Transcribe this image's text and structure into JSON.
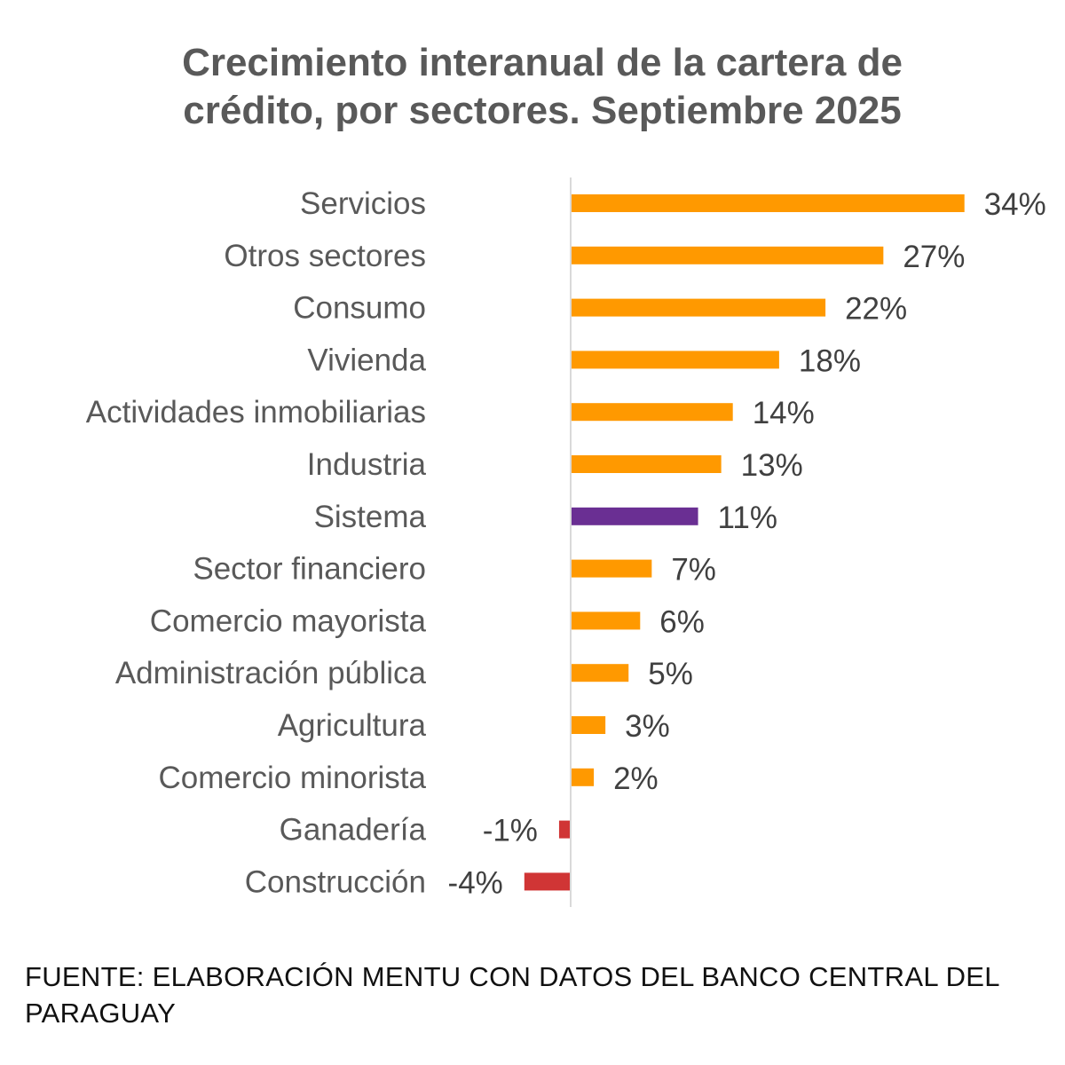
{
  "chart_data": {
    "type": "bar",
    "orientation": "horizontal",
    "title_line1": "Crecimiento interanual de la cartera de",
    "title_line2": "crédito, por sectores. Septiembre 2025",
    "categories": [
      "Servicios",
      "Otros sectores",
      "Consumo",
      "Vivienda",
      "Actividades inmobiliarias",
      "Industria",
      "Sistema",
      "Sector financiero",
      "Comercio mayorista",
      "Administración pública",
      "Agricultura",
      "Comercio minorista",
      "Ganadería",
      "Construcción"
    ],
    "values": [
      34,
      27,
      22,
      18,
      14,
      13,
      11,
      7,
      6,
      5,
      3,
      2,
      -1,
      -4
    ],
    "labels": [
      "34%",
      "27%",
      "22%",
      "18%",
      "14%",
      "13%",
      "11%",
      "7%",
      "6%",
      "5%",
      "3%",
      "2%",
      "-1%",
      "-4%"
    ],
    "unit": "%",
    "xlim": [
      -5,
      35
    ],
    "grid": false,
    "legend": "none",
    "colors": {
      "positive": "#FF9900",
      "highlight": "#6A2F93",
      "negative": "#D03535"
    },
    "highlight_category": "Sistema"
  },
  "source": "FUENTE: ELABORACIÓN MENTU CON DATOS DEL BANCO CENTRAL DEL PARAGUAY"
}
